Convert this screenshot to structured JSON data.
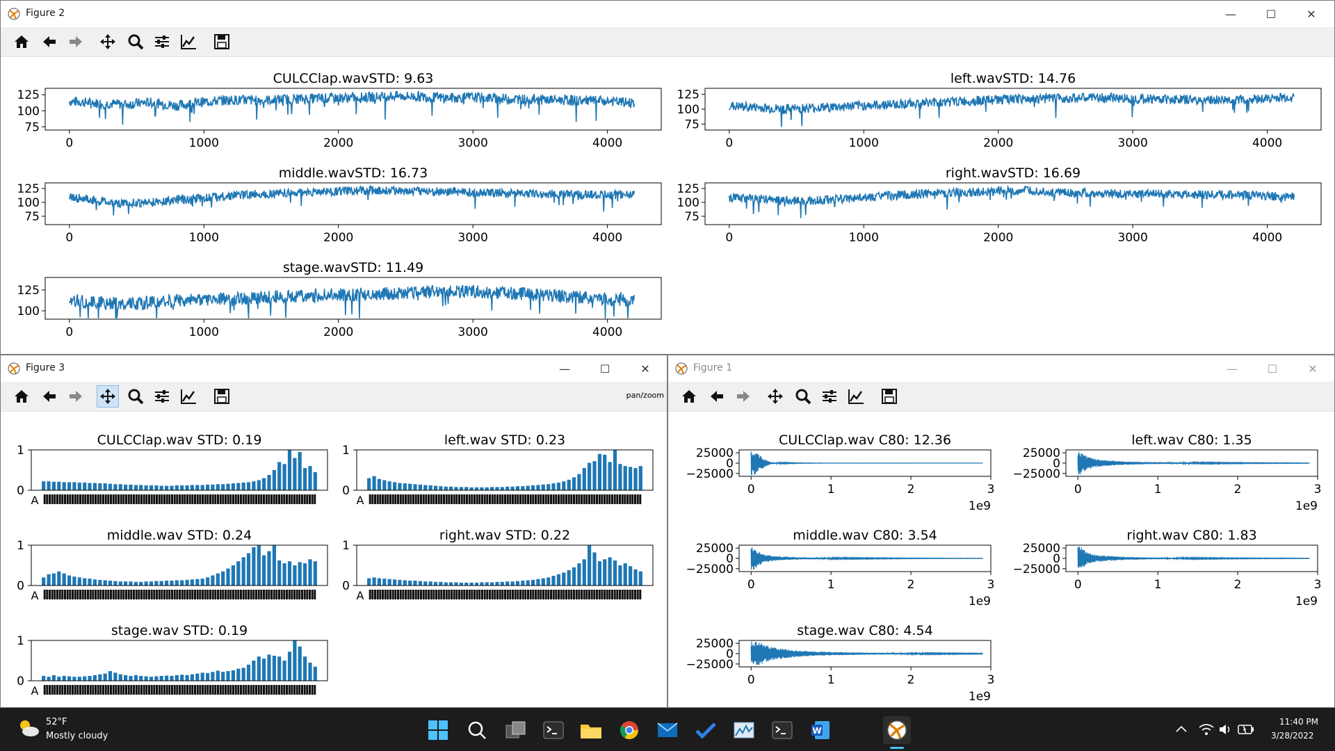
{
  "windows": [
    {
      "id": "figure2",
      "title": "Figure 2",
      "message": ""
    },
    {
      "id": "figure3",
      "title": "Figure 3",
      "message": "pan/zoom"
    },
    {
      "id": "figure1",
      "title": "Figure 1",
      "message": ""
    }
  ],
  "toolbar_buttons": [
    "home",
    "back",
    "forward",
    "pan",
    "zoom",
    "configure-subplots",
    "edit-axis",
    "save"
  ],
  "window_controls": {
    "minimize": "—",
    "maximize": "☐",
    "close": "✕"
  },
  "colors": {
    "series": "#1f77b4",
    "taskbar": "#1c1c1c",
    "active_tool": "#cfe3f7"
  },
  "chart_data": [
    {
      "figure": "Figure 2",
      "type": "line",
      "title": "CULCClap.wavSTD: 9.63",
      "xlim": [
        0,
        4200
      ],
      "xticks": [
        0,
        1000,
        2000,
        3000,
        4000
      ],
      "ylim": [
        70,
        135
      ],
      "yticks": [
        75,
        100,
        125
      ],
      "x": [
        0,
        200,
        400,
        600,
        800,
        1000,
        1200,
        1400,
        1600,
        1800,
        2000,
        2200,
        2400,
        2600,
        2800,
        3000,
        3200,
        3400,
        3600,
        3800,
        4000,
        4200
      ],
      "y": [
        115,
        112,
        110,
        113,
        108,
        114,
        117,
        116,
        118,
        119,
        120,
        121,
        123,
        122,
        120,
        121,
        119,
        118,
        117,
        116,
        115,
        112
      ]
    },
    {
      "figure": "Figure 2",
      "type": "line",
      "title": "left.wavSTD: 14.76",
      "xlim": [
        0,
        4200
      ],
      "xticks": [
        0,
        1000,
        2000,
        3000,
        4000
      ],
      "ylim": [
        65,
        135
      ],
      "yticks": [
        75,
        100,
        125
      ],
      "x": [
        0,
        200,
        400,
        600,
        800,
        1000,
        1200,
        1400,
        1600,
        1800,
        2000,
        2200,
        2400,
        2600,
        2800,
        3000,
        3200,
        3400,
        3600,
        3800,
        4000,
        4200
      ],
      "y": [
        105,
        103,
        100,
        102,
        104,
        106,
        108,
        110,
        112,
        114,
        116,
        117,
        118,
        119,
        119,
        118,
        117,
        116,
        115,
        116,
        118,
        120
      ]
    },
    {
      "figure": "Figure 2",
      "type": "line",
      "title": "middle.wavSTD: 16.73",
      "xlim": [
        0,
        4200
      ],
      "xticks": [
        0,
        1000,
        2000,
        3000,
        4000
      ],
      "ylim": [
        60,
        135
      ],
      "yticks": [
        75,
        100,
        125
      ],
      "x": [
        0,
        200,
        400,
        600,
        800,
        1000,
        1200,
        1400,
        1600,
        1800,
        2000,
        2200,
        2400,
        2600,
        2800,
        3000,
        3200,
        3400,
        3600,
        3800,
        4000,
        4200
      ],
      "y": [
        110,
        103,
        98,
        100,
        105,
        108,
        112,
        115,
        117,
        118,
        120,
        121,
        122,
        120,
        119,
        118,
        117,
        116,
        115,
        114,
        113,
        115
      ]
    },
    {
      "figure": "Figure 2",
      "type": "line",
      "title": "right.wavSTD: 16.69",
      "xlim": [
        0,
        4200
      ],
      "xticks": [
        0,
        1000,
        2000,
        3000,
        4000
      ],
      "ylim": [
        60,
        135
      ],
      "yticks": [
        75,
        100,
        125
      ],
      "x": [
        0,
        200,
        400,
        600,
        800,
        1000,
        1200,
        1400,
        1600,
        1800,
        2000,
        2200,
        2400,
        2600,
        2800,
        3000,
        3200,
        3400,
        3600,
        3800,
        4000,
        4200
      ],
      "y": [
        108,
        106,
        104,
        102,
        106,
        108,
        112,
        115,
        117,
        118,
        120,
        121,
        118,
        117,
        116,
        115,
        115,
        114,
        114,
        113,
        112,
        110
      ]
    },
    {
      "figure": "Figure 2",
      "type": "line",
      "title": "stage.wavSTD: 11.49",
      "xlim": [
        0,
        4200
      ],
      "xticks": [
        0,
        1000,
        2000,
        3000,
        4000
      ],
      "ylim": [
        90,
        140
      ],
      "yticks": [
        100,
        125
      ],
      "x": [
        0,
        200,
        400,
        600,
        800,
        1000,
        1200,
        1400,
        1600,
        1800,
        2000,
        2200,
        2400,
        2600,
        2800,
        3000,
        3200,
        3400,
        3600,
        3800,
        4000,
        4200
      ],
      "y": [
        112,
        110,
        108,
        110,
        112,
        114,
        115,
        116,
        117,
        118,
        119,
        120,
        121,
        122,
        123,
        124,
        122,
        120,
        118,
        116,
        114,
        113
      ]
    },
    {
      "figure": "Figure 3",
      "type": "bar",
      "title": "CULCClap.wav STD: 0.19",
      "ylim": [
        0,
        1
      ],
      "yticks": [
        0,
        1
      ],
      "first_tick": "A",
      "values": [
        0.22,
        0.22,
        0.21,
        0.21,
        0.2,
        0.2,
        0.2,
        0.19,
        0.19,
        0.18,
        0.18,
        0.17,
        0.17,
        0.16,
        0.15,
        0.15,
        0.14,
        0.14,
        0.13,
        0.13,
        0.12,
        0.12,
        0.12,
        0.11,
        0.11,
        0.11,
        0.12,
        0.12,
        0.12,
        0.13,
        0.13,
        0.13,
        0.14,
        0.14,
        0.15,
        0.15,
        0.16,
        0.17,
        0.18,
        0.19,
        0.2,
        0.22,
        0.25,
        0.3,
        0.38,
        0.5,
        0.7,
        0.65,
        1.0,
        0.8,
        0.95,
        0.55,
        0.6,
        0.45
      ]
    },
    {
      "figure": "Figure 3",
      "type": "bar",
      "title": "left.wav STD: 0.23",
      "ylim": [
        0,
        1
      ],
      "yticks": [
        0,
        1
      ],
      "first_tick": "A",
      "values": [
        0.3,
        0.35,
        0.28,
        0.25,
        0.22,
        0.2,
        0.18,
        0.17,
        0.16,
        0.15,
        0.14,
        0.13,
        0.12,
        0.11,
        0.1,
        0.09,
        0.09,
        0.08,
        0.08,
        0.08,
        0.07,
        0.07,
        0.07,
        0.07,
        0.08,
        0.08,
        0.08,
        0.09,
        0.09,
        0.1,
        0.1,
        0.11,
        0.12,
        0.13,
        0.14,
        0.15,
        0.17,
        0.19,
        0.22,
        0.26,
        0.32,
        0.4,
        0.55,
        0.68,
        0.72,
        0.9,
        0.88,
        0.7,
        1.0,
        0.65,
        0.6,
        0.58,
        0.55,
        0.6
      ]
    },
    {
      "figure": "Figure 3",
      "type": "bar",
      "title": "middle.wav STD: 0.24",
      "ylim": [
        0,
        1
      ],
      "yticks": [
        0,
        1
      ],
      "first_tick": "A",
      "values": [
        0.2,
        0.28,
        0.3,
        0.35,
        0.3,
        0.25,
        0.22,
        0.2,
        0.18,
        0.17,
        0.15,
        0.14,
        0.13,
        0.12,
        0.11,
        0.1,
        0.1,
        0.1,
        0.09,
        0.09,
        0.1,
        0.1,
        0.11,
        0.11,
        0.12,
        0.12,
        0.13,
        0.13,
        0.14,
        0.15,
        0.16,
        0.17,
        0.2,
        0.25,
        0.3,
        0.35,
        0.42,
        0.5,
        0.6,
        0.7,
        0.8,
        0.95,
        1.0,
        0.75,
        0.85,
        1.0,
        0.62,
        0.55,
        0.6,
        0.5,
        0.58,
        0.55,
        0.65,
        0.6
      ]
    },
    {
      "figure": "Figure 3",
      "type": "bar",
      "title": "right.wav STD: 0.22",
      "ylim": [
        0,
        1
      ],
      "yticks": [
        0,
        1
      ],
      "first_tick": "A",
      "values": [
        0.18,
        0.2,
        0.18,
        0.17,
        0.16,
        0.15,
        0.14,
        0.13,
        0.12,
        0.12,
        0.11,
        0.1,
        0.1,
        0.09,
        0.09,
        0.08,
        0.08,
        0.08,
        0.07,
        0.07,
        0.07,
        0.07,
        0.08,
        0.08,
        0.08,
        0.09,
        0.09,
        0.1,
        0.1,
        0.11,
        0.12,
        0.13,
        0.14,
        0.16,
        0.18,
        0.2,
        0.24,
        0.28,
        0.32,
        0.38,
        0.45,
        0.55,
        0.65,
        1.0,
        0.82,
        0.6,
        0.65,
        0.7,
        0.62,
        0.5,
        0.55,
        0.48,
        0.4,
        0.35
      ]
    },
    {
      "figure": "Figure 3",
      "type": "bar",
      "title": "stage.wav STD: 0.19",
      "ylim": [
        0,
        1
      ],
      "yticks": [
        0,
        1
      ],
      "first_tick": "A",
      "values": [
        0.12,
        0.1,
        0.14,
        0.1,
        0.12,
        0.11,
        0.1,
        0.1,
        0.11,
        0.12,
        0.14,
        0.16,
        0.18,
        0.24,
        0.2,
        0.16,
        0.14,
        0.12,
        0.14,
        0.12,
        0.11,
        0.1,
        0.11,
        0.12,
        0.13,
        0.12,
        0.14,
        0.15,
        0.14,
        0.16,
        0.18,
        0.2,
        0.19,
        0.22,
        0.25,
        0.22,
        0.24,
        0.26,
        0.3,
        0.32,
        0.4,
        0.5,
        0.6,
        0.55,
        0.65,
        0.62,
        0.6,
        0.5,
        0.72,
        1.0,
        0.85,
        0.6,
        0.45,
        0.35
      ]
    },
    {
      "figure": "Figure 1",
      "type": "line",
      "title": "CULCClap.wav C80: 12.36",
      "xlim": [
        -0.15,
        3.0
      ],
      "xticks": [
        0,
        1,
        2,
        3
      ],
      "xscale_label": "1e9",
      "ylim": [
        -32000,
        32000
      ],
      "yticks": [
        -25000,
        0,
        25000
      ],
      "envelope_t": [
        0.0,
        0.05,
        0.1,
        0.15,
        0.2,
        0.25,
        0.3,
        0.4,
        0.5,
        0.6,
        0.8,
        1.0,
        1.5,
        2.0,
        2.5,
        2.9
      ],
      "envelope_amp": [
        30000,
        28000,
        20000,
        12000,
        6000,
        3000,
        2000,
        1200,
        800,
        500,
        300,
        200,
        120,
        80,
        60,
        40
      ]
    },
    {
      "figure": "Figure 1",
      "type": "line",
      "title": "left.wav C80: 1.35",
      "xlim": [
        -0.15,
        3.0
      ],
      "xticks": [
        0,
        1,
        2,
        3
      ],
      "xscale_label": "1e9",
      "ylim": [
        -32000,
        32000
      ],
      "yticks": [
        -25000,
        0,
        25000
      ],
      "envelope_t": [
        0.0,
        0.05,
        0.1,
        0.15,
        0.2,
        0.25,
        0.3,
        0.4,
        0.5,
        0.6,
        0.8,
        1.0,
        1.5,
        2.0,
        2.5,
        2.9
      ],
      "envelope_amp": [
        30000,
        26000,
        18000,
        14000,
        11000,
        9000,
        8000,
        6500,
        5200,
        4200,
        3000,
        2200,
        1400,
        900,
        600,
        400
      ]
    },
    {
      "figure": "Figure 1",
      "type": "line",
      "title": "middle.wav C80: 3.54",
      "xlim": [
        -0.15,
        3.0
      ],
      "xticks": [
        0,
        1,
        2,
        3
      ],
      "xscale_label": "1e9",
      "ylim": [
        -32000,
        32000
      ],
      "yticks": [
        -25000,
        0,
        25000
      ],
      "envelope_t": [
        0.0,
        0.05,
        0.1,
        0.15,
        0.2,
        0.25,
        0.3,
        0.4,
        0.5,
        0.6,
        0.8,
        1.0,
        1.5,
        2.0,
        2.5,
        2.9
      ],
      "envelope_amp": [
        30000,
        26000,
        17000,
        12000,
        9000,
        7000,
        6000,
        4500,
        3500,
        2800,
        2000,
        1500,
        900,
        600,
        400,
        300
      ]
    },
    {
      "figure": "Figure 1",
      "type": "line",
      "title": "right.wav C80: 1.83",
      "xlim": [
        -0.15,
        3.0
      ],
      "xticks": [
        0,
        1,
        2,
        3
      ],
      "xscale_label": "1e9",
      "ylim": [
        -32000,
        32000
      ],
      "yticks": [
        -25000,
        0,
        25000
      ],
      "envelope_t": [
        0.0,
        0.05,
        0.1,
        0.15,
        0.2,
        0.25,
        0.3,
        0.4,
        0.5,
        0.6,
        0.8,
        1.0,
        1.5,
        2.0,
        2.5,
        2.9
      ],
      "envelope_amp": [
        30000,
        27000,
        18000,
        13000,
        10000,
        8500,
        7500,
        6000,
        4800,
        3800,
        2700,
        2000,
        1200,
        800,
        550,
        400
      ]
    },
    {
      "figure": "Figure 1",
      "type": "line",
      "title": "stage.wav C80: 4.54",
      "xlim": [
        -0.15,
        3.0
      ],
      "xticks": [
        0,
        1,
        2,
        3
      ],
      "xscale_label": "1e9",
      "ylim": [
        -32000,
        32000
      ],
      "yticks": [
        -25000,
        0,
        25000
      ],
      "envelope_t": [
        0.0,
        0.05,
        0.1,
        0.15,
        0.2,
        0.25,
        0.3,
        0.4,
        0.5,
        0.6,
        0.8,
        1.0,
        1.5,
        2.0,
        2.5,
        2.9
      ],
      "envelope_amp": [
        30000,
        30000,
        28000,
        24000,
        20000,
        17000,
        15000,
        12000,
        9500,
        7500,
        5500,
        4200,
        2500,
        1600,
        1000,
        700
      ]
    }
  ],
  "taskbar": {
    "weather_temp": "52°F",
    "weather_desc": "Mostly cloudy",
    "apps": [
      "start",
      "search",
      "task-view",
      "terminal",
      "file-explorer",
      "chrome",
      "mail",
      "todo",
      "perfmon",
      "terminal-2",
      "word",
      "python-figure"
    ],
    "time": "11:40 PM",
    "date": "3/28/2022"
  }
}
